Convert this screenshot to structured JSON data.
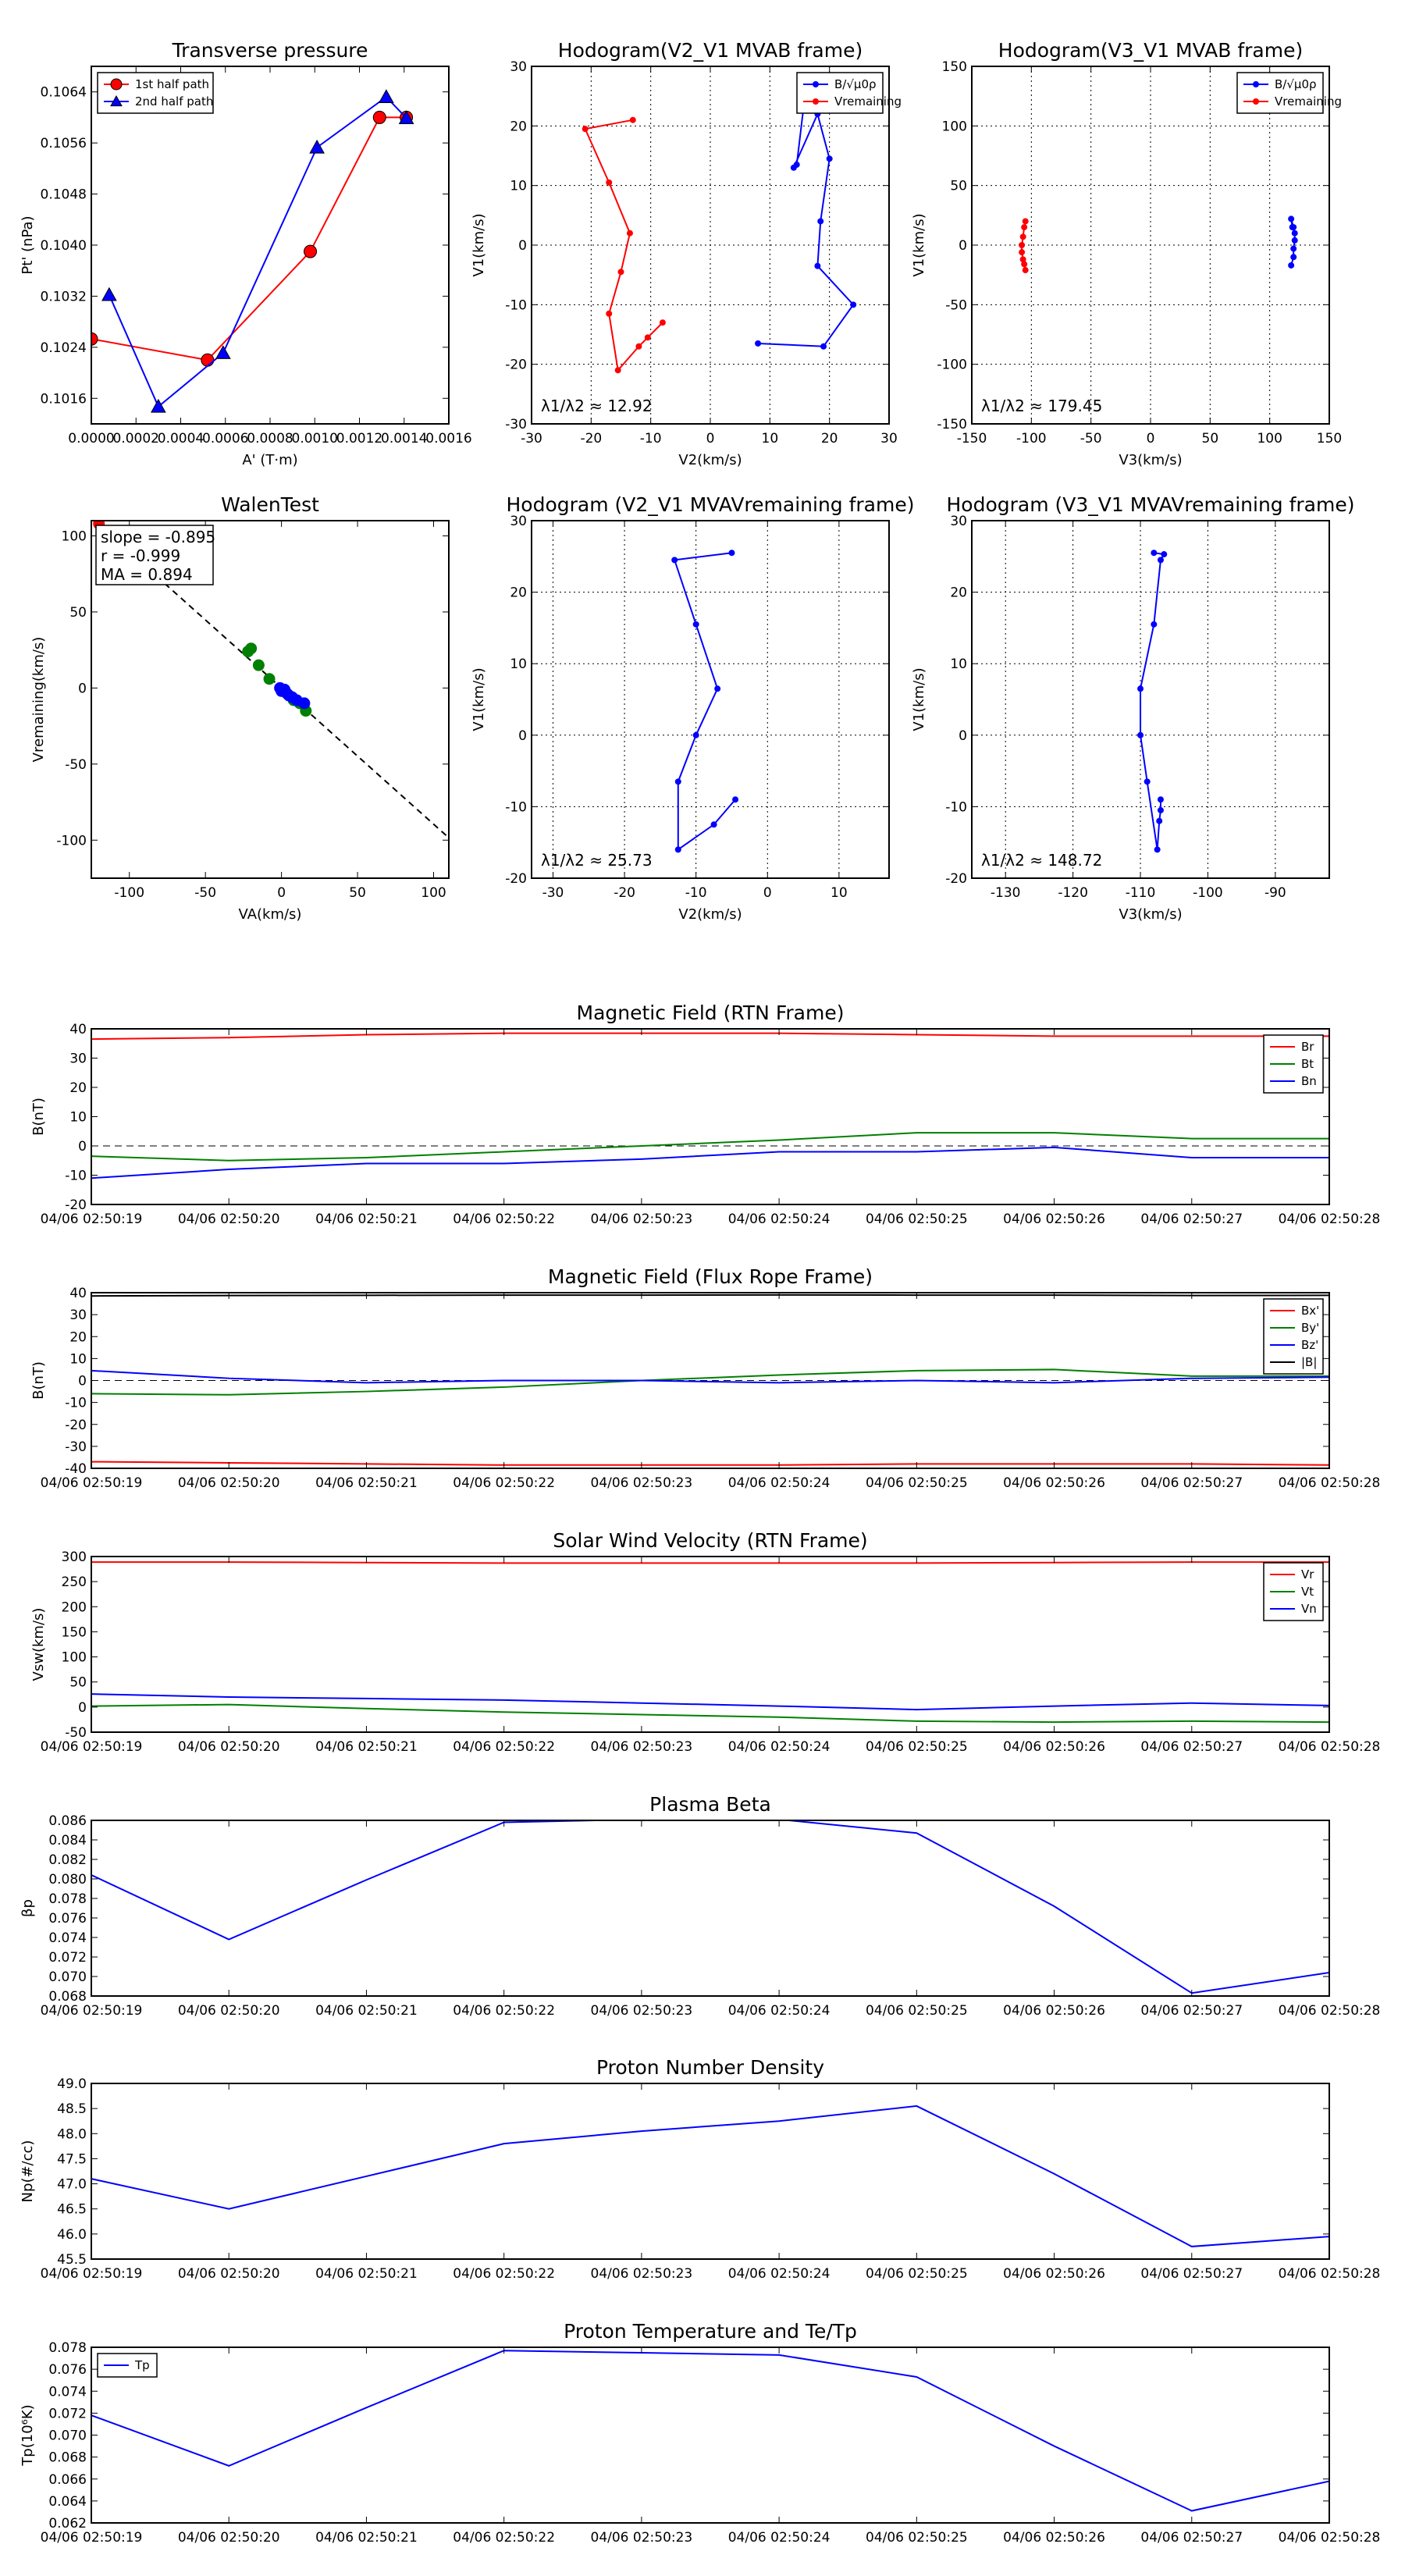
{
  "figure": {
    "colors": {
      "red": "#ff0000",
      "blue": "#0000ff",
      "green": "#008000",
      "black": "#000000",
      "grid": "#000000"
    }
  },
  "chart_data": [
    {
      "id": "transverse-pressure",
      "type": "line",
      "title": "Transverse pressure",
      "xlabel": "A' (T·m)",
      "ylabel": "Pt' (nPa)",
      "xlim": [
        0,
        0.0016
      ],
      "ylim": [
        0.1012,
        0.1068
      ],
      "xticks": [
        0,
        0.0002,
        0.0004,
        0.0006,
        0.0008,
        0.001,
        0.0012,
        0.0014,
        0.0016
      ],
      "xticklabels": [
        "0.0000",
        "0.0002",
        "0.0004",
        "0.0006",
        "0.0008",
        "0.0010",
        "0.0012",
        "0.0014",
        "0.0016"
      ],
      "yticks": [
        0.1016,
        0.1024,
        0.1032,
        0.104,
        0.1048,
        0.1056,
        0.1064
      ],
      "yticklabels": [
        "0.1016",
        "0.1024",
        "0.1032",
        "0.1040",
        "0.1048",
        "0.1056",
        "0.1064"
      ],
      "grid": false,
      "legend": "upper-left",
      "series": [
        {
          "name": "1st half path",
          "color": "red",
          "marker": "circle",
          "x": [
            0,
            0.00052,
            0.00098,
            0.00129,
            0.00141
          ],
          "y": [
            0.10253,
            0.1022,
            0.1039,
            0.106,
            0.106
          ]
        },
        {
          "name": "2nd half path",
          "color": "blue",
          "marker": "triangle",
          "x": [
            8e-05,
            0.0003,
            0.00059,
            0.00101,
            0.00132,
            0.00141
          ],
          "y": [
            0.10322,
            0.10147,
            0.10231,
            0.10553,
            0.10632,
            0.10599
          ]
        }
      ]
    },
    {
      "id": "hodogram-v2v1-mvab",
      "type": "line",
      "title": "Hodogram(V2_V1 MVAB frame)",
      "xlabel": "V2(km/s)",
      "ylabel": "V1(km/s)",
      "xlim": [
        -30,
        30
      ],
      "ylim": [
        -30,
        30
      ],
      "xticks": [
        -30,
        -20,
        -10,
        0,
        10,
        20,
        30
      ],
      "yticks": [
        -30,
        -20,
        -10,
        0,
        10,
        20,
        30
      ],
      "grid": true,
      "legend": "upper-right",
      "annotation": "λ1/λ2 ≈ 12.92",
      "series": [
        {
          "name": "B/√μ0ρ",
          "color": "blue",
          "marker": "dot",
          "x": [
            8,
            19,
            24,
            18,
            18.5,
            20,
            18,
            14,
            14.5,
            16
          ],
          "y": [
            -16.5,
            -17,
            -10,
            -3.5,
            4,
            14.5,
            22,
            13,
            13.5,
            26
          ]
        },
        {
          "name": "Vremaining",
          "color": "red",
          "marker": "dot",
          "x": [
            -8,
            -10.5,
            -12,
            -15.5,
            -17,
            -15,
            -13.5,
            -17,
            -21,
            -13
          ],
          "y": [
            -13,
            -15.5,
            -17,
            -21,
            -11.5,
            -4.5,
            2,
            10.5,
            19.5,
            21
          ]
        }
      ]
    },
    {
      "id": "hodogram-v3v1-mvab",
      "type": "line",
      "title": "Hodogram(V3_V1 MVAB frame)",
      "xlabel": "V3(km/s)",
      "ylabel": "V1(km/s)",
      "xlim": [
        -150,
        150
      ],
      "ylim": [
        -150,
        150
      ],
      "xticks": [
        -150,
        -100,
        -50,
        0,
        50,
        100,
        150
      ],
      "yticks": [
        -150,
        -100,
        -50,
        0,
        50,
        100,
        150
      ],
      "grid": true,
      "legend": "upper-right",
      "annotation": "λ1/λ2 ≈ 179.45",
      "series": [
        {
          "name": "B/√μ0ρ",
          "color": "blue",
          "marker": "dot",
          "x": [
            118,
            120,
            120,
            121,
            121,
            119,
            118,
            120
          ],
          "y": [
            -17,
            -10,
            -3,
            4,
            10,
            15,
            22,
            15
          ]
        },
        {
          "name": "Vremaining",
          "color": "red",
          "marker": "dot",
          "x": [
            -105,
            -106,
            -107,
            -108,
            -108,
            -107,
            -106,
            -105
          ],
          "y": [
            -21,
            -16,
            -12,
            -6,
            0,
            7,
            15,
            20
          ]
        }
      ]
    },
    {
      "id": "walen-test",
      "type": "scatter",
      "title": "WalenTest",
      "xlabel": "VA(km/s)",
      "ylabel": "Vremaining(km/s)",
      "xlim": [
        -125,
        110
      ],
      "ylim": [
        -125,
        110
      ],
      "xticks": [
        -100,
        -50,
        0,
        50,
        100
      ],
      "yticks": [
        -100,
        -50,
        0,
        50,
        100
      ],
      "grid": false,
      "fit_line": {
        "slope": -0.895,
        "intercept": 0
      },
      "annotation": [
        "slope = -0.895",
        "r = -0.999",
        "MA = 0.894"
      ],
      "series": [
        {
          "name": "green",
          "color": "green",
          "x": [
            -22,
            -20,
            -15,
            -8,
            4,
            8,
            12,
            16
          ],
          "y": [
            24,
            26,
            15,
            6,
            -4,
            -8,
            -10,
            -15
          ]
        },
        {
          "name": "blue",
          "color": "blue",
          "x": [
            -1,
            0,
            2,
            3,
            5,
            7,
            10,
            15
          ],
          "y": [
            0,
            -2,
            -1,
            -3,
            -5,
            -6,
            -8,
            -10
          ]
        },
        {
          "name": "red",
          "color": "red",
          "x": [
            -120
          ],
          "y": [
            108
          ]
        }
      ]
    },
    {
      "id": "hodogram-v2v1-mvav",
      "type": "line",
      "title": "Hodogram (V2_V1 MVAVremaining frame)",
      "xlabel": "V2(km/s)",
      "ylabel": "V1(km/s)",
      "xlim": [
        -33,
        17
      ],
      "ylim": [
        -20,
        30
      ],
      "xticks": [
        -30,
        -20,
        -10,
        0,
        10
      ],
      "yticks": [
        -20,
        -10,
        0,
        10,
        20,
        30
      ],
      "grid": true,
      "annotation": "λ1/λ2 ≈ 25.73",
      "series": [
        {
          "name": "V",
          "color": "blue",
          "marker": "dot",
          "x": [
            -4.5,
            -7.5,
            -12.5,
            -12.5,
            -10,
            -7,
            -10,
            -13,
            -5
          ],
          "y": [
            -9,
            -12.5,
            -16,
            -6.5,
            0,
            6.5,
            15.5,
            24.5,
            25.5
          ]
        }
      ]
    },
    {
      "id": "hodogram-v3v1-mvav",
      "type": "line",
      "title": "Hodogram (V3_V1 MVAVremaining frame)",
      "xlabel": "V3(km/s)",
      "ylabel": "V1(km/s)",
      "xlim": [
        -135,
        -82
      ],
      "ylim": [
        -20,
        30
      ],
      "xticks": [
        -130,
        -120,
        -110,
        -100,
        -90
      ],
      "yticks": [
        -20,
        -10,
        0,
        10,
        20,
        30
      ],
      "grid": true,
      "annotation": "λ1/λ2 ≈ 148.72",
      "series": [
        {
          "name": "V",
          "color": "blue",
          "marker": "dot",
          "x": [
            -107,
            -107,
            -107.2,
            -107.5,
            -109,
            -110,
            -110,
            -108,
            -107,
            -106.5,
            -108
          ],
          "y": [
            -9,
            -10.5,
            -12,
            -16,
            -6.5,
            0,
            6.5,
            15.5,
            24.5,
            25.3,
            25.5
          ]
        }
      ]
    },
    {
      "id": "mag-field-rtn",
      "type": "line",
      "title": "Magnetic Field (RTN Frame)",
      "ylabel": "B(nT)",
      "ylim": [
        -20,
        40
      ],
      "yticks": [
        -20,
        -10,
        0,
        10,
        20,
        30,
        40
      ],
      "xticklabels": [
        "04/06 02:50:19",
        "04/06 02:50:20",
        "04/06 02:50:21",
        "04/06 02:50:22",
        "04/06 02:50:23",
        "04/06 02:50:24",
        "04/06 02:50:25",
        "04/06 02:50:26",
        "04/06 02:50:27",
        "04/06 02:50:28"
      ],
      "zero_line": true,
      "legend": "upper-right",
      "series": [
        {
          "name": "Br",
          "color": "red",
          "values": [
            36.5,
            37,
            38,
            38.5,
            38.5,
            38.5,
            38,
            37.5,
            37.5,
            37.5
          ]
        },
        {
          "name": "Bt",
          "color": "green",
          "values": [
            -3.5,
            -5,
            -4,
            -2,
            0,
            2,
            4.5,
            4.5,
            2.5,
            2.5
          ]
        },
        {
          "name": "Bn",
          "color": "blue",
          "values": [
            -11,
            -8,
            -6,
            -6,
            -4.5,
            -2,
            -2,
            -0.5,
            -4,
            -4
          ]
        }
      ]
    },
    {
      "id": "mag-field-flux-rope",
      "type": "line",
      "title": "Magnetic Field (Flux Rope Frame)",
      "ylabel": "B(nT)",
      "ylim": [
        -40,
        40
      ],
      "yticks": [
        -40,
        -30,
        -20,
        -10,
        0,
        10,
        20,
        30,
        40
      ],
      "xticklabels": [
        "04/06 02:50:19",
        "04/06 02:50:20",
        "04/06 02:50:21",
        "04/06 02:50:22",
        "04/06 02:50:23",
        "04/06 02:50:24",
        "04/06 02:50:25",
        "04/06 02:50:26",
        "04/06 02:50:27",
        "04/06 02:50:28"
      ],
      "zero_line": true,
      "legend": "upper-right",
      "series": [
        {
          "name": "Bx'",
          "color": "red",
          "values": [
            -37,
            -37.5,
            -38,
            -38.5,
            -38.5,
            -38.5,
            -38,
            -38,
            -38,
            -38.5
          ]
        },
        {
          "name": "By'",
          "color": "green",
          "values": [
            -6,
            -6.5,
            -5,
            -3,
            0,
            2.5,
            4.5,
            5,
            2,
            2
          ]
        },
        {
          "name": "Bz'",
          "color": "blue",
          "values": [
            4.5,
            1,
            -1,
            0,
            0,
            -1,
            0,
            -1,
            1,
            1.5
          ]
        },
        {
          "name": "|B|",
          "color": "black",
          "values": [
            38.5,
            38.7,
            38.8,
            38.9,
            38.9,
            39,
            38.9,
            38.9,
            38.7,
            38.8
          ]
        }
      ]
    },
    {
      "id": "solar-wind-velocity",
      "type": "line",
      "title": "Solar Wind Velocity (RTN Frame)",
      "ylabel": "Vsw(km/s)",
      "ylim": [
        -50,
        300
      ],
      "yticks": [
        -50,
        0,
        50,
        100,
        150,
        200,
        250,
        300
      ],
      "xticklabels": [
        "04/06 02:50:19",
        "04/06 02:50:20",
        "04/06 02:50:21",
        "04/06 02:50:22",
        "04/06 02:50:23",
        "04/06 02:50:24",
        "04/06 02:50:25",
        "04/06 02:50:26",
        "04/06 02:50:27",
        "04/06 02:50:28"
      ],
      "legend": "upper-right",
      "series": [
        {
          "name": "Vr",
          "color": "red",
          "values": [
            289,
            289,
            288,
            287,
            287,
            287,
            287,
            288,
            289,
            289
          ]
        },
        {
          "name": "Vt",
          "color": "green",
          "values": [
            2,
            5,
            -3,
            -10,
            -15,
            -20,
            -28,
            -30,
            -28,
            -30
          ]
        },
        {
          "name": "Vn",
          "color": "blue",
          "values": [
            26,
            20,
            17,
            14,
            8,
            2,
            -5,
            2,
            8,
            3
          ]
        }
      ]
    },
    {
      "id": "plasma-beta",
      "type": "line",
      "title": "Plasma Beta",
      "ylabel": "βp",
      "ylim": [
        0.068,
        0.086
      ],
      "yticks": [
        0.068,
        0.07,
        0.072,
        0.074,
        0.076,
        0.078,
        0.08,
        0.082,
        0.084,
        0.086
      ],
      "yticklabels": [
        "0.068",
        "0.070",
        "0.072",
        "0.074",
        "0.076",
        "0.078",
        "0.080",
        "0.082",
        "0.084",
        "0.086"
      ],
      "xticklabels": [
        "04/06 02:50:19",
        "04/06 02:50:20",
        "04/06 02:50:21",
        "04/06 02:50:22",
        "04/06 02:50:23",
        "04/06 02:50:24",
        "04/06 02:50:25",
        "04/06 02:50:26",
        "04/06 02:50:27",
        "04/06 02:50:28"
      ],
      "series": [
        {
          "name": "beta",
          "color": "blue",
          "values": [
            0.0804,
            0.0738,
            0.0799,
            0.0858,
            0.0861,
            0.0861,
            0.0847,
            0.0772,
            0.0683,
            0.0704
          ]
        }
      ]
    },
    {
      "id": "proton-density",
      "type": "line",
      "title": "Proton Number Density",
      "ylabel": "Np(#/cc)",
      "ylim": [
        45.5,
        49
      ],
      "yticks": [
        45.5,
        46,
        46.5,
        47,
        47.5,
        48,
        48.5,
        49
      ],
      "yticklabels": [
        "45.5",
        "46.0",
        "46.5",
        "47.0",
        "47.5",
        "48.0",
        "48.5",
        "49.0"
      ],
      "xticklabels": [
        "04/06 02:50:19",
        "04/06 02:50:20",
        "04/06 02:50:21",
        "04/06 02:50:22",
        "04/06 02:50:23",
        "04/06 02:50:24",
        "04/06 02:50:25",
        "04/06 02:50:26",
        "04/06 02:50:27",
        "04/06 02:50:28"
      ],
      "series": [
        {
          "name": "Np",
          "color": "blue",
          "values": [
            47.1,
            46.5,
            47.15,
            47.8,
            48.05,
            48.25,
            48.55,
            47.2,
            45.75,
            45.95
          ]
        }
      ]
    },
    {
      "id": "proton-temperature",
      "type": "line",
      "title": "Proton Temperature and Te/Tp",
      "ylabel": "Tp(10⁶K)",
      "ylim": [
        0.062,
        0.078
      ],
      "yticks": [
        0.062,
        0.064,
        0.066,
        0.068,
        0.07,
        0.072,
        0.074,
        0.076,
        0.078
      ],
      "yticklabels": [
        "0.062",
        "0.064",
        "0.066",
        "0.068",
        "0.070",
        "0.072",
        "0.074",
        "0.076",
        "0.078"
      ],
      "xticklabels": [
        "04/06 02:50:19",
        "04/06 02:50:20",
        "04/06 02:50:21",
        "04/06 02:50:22",
        "04/06 02:50:23",
        "04/06 02:50:24",
        "04/06 02:50:25",
        "04/06 02:50:26",
        "04/06 02:50:27",
        "04/06 02:50:28"
      ],
      "legend": "upper-left",
      "series": [
        {
          "name": "Tp",
          "color": "blue",
          "values": [
            0.0718,
            0.0672,
            0.0725,
            0.0777,
            0.0775,
            0.0773,
            0.0753,
            0.069,
            0.0631,
            0.0658
          ]
        }
      ]
    }
  ]
}
